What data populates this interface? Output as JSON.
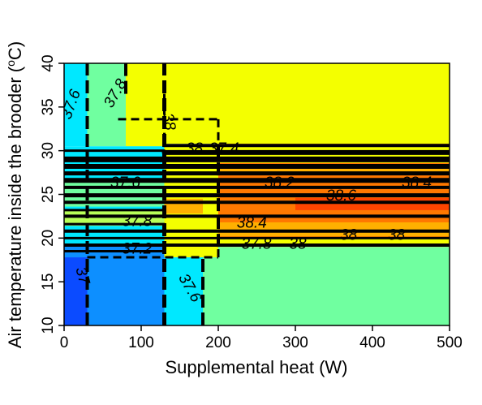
{
  "chart_data": {
    "type": "heatmap",
    "xlabel": "Supplemental heat (W)",
    "ylabel_prefix": "Air temperature inside the brooder (",
    "ylabel_degree": "o",
    "ylabel_suffix": "C)",
    "xlim": [
      0,
      500
    ],
    "ylim": [
      10,
      40
    ],
    "x_ticks": [
      0,
      100,
      200,
      300,
      400,
      500
    ],
    "y_ticks": [
      10,
      15,
      20,
      25,
      30,
      35,
      40
    ],
    "palette": {
      "c37": "#0b4bff",
      "c37_2": "#0d8fff",
      "c37_4": "#00e8ff",
      "c37_6": "#70ffa0",
      "c37_8": "#b8ff58",
      "c38": "#f4ff00",
      "c38_2": "#ffb000",
      "c38_4": "#ff7800",
      "c38_6": "#ff4500"
    },
    "zones": [
      {
        "x": [
          0,
          30
        ],
        "y": [
          10,
          17.8
        ],
        "color": "c37"
      },
      {
        "x": [
          30,
          130
        ],
        "y": [
          10,
          17.8
        ],
        "color": "c37_2"
      },
      {
        "x": [
          130,
          180
        ],
        "y": [
          10,
          17.8
        ],
        "color": "c37_4"
      },
      {
        "x": [
          180,
          500
        ],
        "y": [
          10,
          19
        ],
        "color": "c37_6"
      },
      {
        "x": [
          0,
          30
        ],
        "y": [
          30.5,
          40
        ],
        "color": "c37_4"
      },
      {
        "x": [
          30,
          130
        ],
        "y": [
          30.5,
          40
        ],
        "color": "c37_6"
      },
      {
        "x": [
          80,
          130
        ],
        "y": [
          30.5,
          40
        ],
        "color": "c38"
      },
      {
        "x": [
          130,
          500
        ],
        "y": [
          30.8,
          40
        ],
        "color": "c38"
      },
      {
        "x": [
          0,
          200
        ],
        "y": [
          17.8,
          30.5
        ],
        "color": "c37_4"
      },
      {
        "x": [
          200,
          500
        ],
        "y": [
          19,
          30.8
        ],
        "color": "c38_4"
      }
    ],
    "bands": [
      {
        "x": [
          0,
          130
        ],
        "y": [
          17.8,
          19.2
        ],
        "color": "c37_2"
      },
      {
        "x": [
          0,
          130
        ],
        "y": [
          19.6,
          21.2
        ],
        "color": "c37_4"
      },
      {
        "x": [
          0,
          130
        ],
        "y": [
          21.4,
          23.2
        ],
        "color": "c37_8"
      },
      {
        "x": [
          0,
          130
        ],
        "y": [
          23.6,
          26.6
        ],
        "color": "c37_6"
      },
      {
        "x": [
          0,
          30
        ],
        "y": [
          27,
          28
        ],
        "color": "c37_4"
      },
      {
        "x": [
          130,
          180
        ],
        "y": [
          17.8,
          30.5
        ],
        "color": "c38"
      },
      {
        "x": [
          130,
          180
        ],
        "y": [
          22.8,
          24.5
        ],
        "color": "c38_2"
      },
      {
        "x": [
          180,
          200
        ],
        "y": [
          17.8,
          30.5
        ],
        "color": "c38"
      },
      {
        "x": [
          200,
          500
        ],
        "y": [
          19,
          20
        ],
        "color": "c38"
      },
      {
        "x": [
          200,
          500
        ],
        "y": [
          20.2,
          21.8
        ],
        "color": "c38_2"
      },
      {
        "x": [
          200,
          500
        ],
        "y": [
          22.2,
          24.5
        ],
        "color": "c38_4"
      },
      {
        "x": [
          300,
          500
        ],
        "y": [
          23.2,
          24.6
        ],
        "color": "c38_6"
      },
      {
        "x": [
          200,
          500
        ],
        "y": [
          27.2,
          28
        ],
        "color": "c38_2"
      },
      {
        "x": [
          130,
          500
        ],
        "y": [
          28.6,
          30.5
        ],
        "color": "c38"
      }
    ],
    "hlines": [
      {
        "y": 30.6,
        "x": [
          130,
          500
        ],
        "w": 4
      },
      {
        "y": 29.8,
        "x": [
          130,
          500
        ],
        "w": 6
      },
      {
        "y": 29.0,
        "x": [
          0,
          500
        ],
        "w": 7
      },
      {
        "y": 28.2,
        "x": [
          0,
          500
        ],
        "w": 6
      },
      {
        "y": 27.4,
        "x": [
          0,
          500
        ],
        "w": 5
      },
      {
        "y": 26.6,
        "x": [
          0,
          500
        ],
        "w": 6
      },
      {
        "y": 25.8,
        "x": [
          0,
          500
        ],
        "w": 4
      },
      {
        "y": 24.9,
        "x": [
          0,
          500
        ],
        "w": 5
      },
      {
        "y": 24.1,
        "x": [
          0,
          500
        ],
        "w": 4
      },
      {
        "y": 23.2,
        "x": [
          0,
          130
        ],
        "w": 3
      },
      {
        "y": 22.5,
        "x": [
          0,
          500
        ],
        "w": 4
      },
      {
        "y": 21.6,
        "x": [
          0,
          130
        ],
        "w": 3
      },
      {
        "y": 20.8,
        "x": [
          0,
          500
        ],
        "w": 4
      },
      {
        "y": 20.0,
        "x": [
          0,
          500
        ],
        "w": 3
      },
      {
        "y": 19.2,
        "x": [
          0,
          500
        ],
        "w": 4
      },
      {
        "y": 18.5,
        "x": [
          0,
          130
        ],
        "w": 3
      },
      {
        "y": 30.0,
        "x": [
          0,
          130
        ],
        "w": 3
      }
    ],
    "vlines": [
      {
        "x": 30,
        "y": [
          10,
          40
        ],
        "w": 4
      },
      {
        "x": 80,
        "y": [
          36.5,
          40
        ],
        "w": 4
      },
      {
        "x": 130,
        "y": [
          10,
          40
        ],
        "w": 5
      },
      {
        "x": 180,
        "y": [
          10,
          17.8
        ],
        "w": 4
      },
      {
        "x": 200,
        "y": [
          19,
          30.5
        ],
        "w": 4
      }
    ],
    "dashed": [
      {
        "x1": 30,
        "y1": 17.8,
        "x2": 200,
        "y2": 17.8
      },
      {
        "x1": 200,
        "y1": 17.8,
        "x2": 200,
        "y2": 19
      },
      {
        "x1": 70,
        "y1": 33.6,
        "x2": 200,
        "y2": 33.6
      },
      {
        "x1": 200,
        "y1": 33.6,
        "x2": 200,
        "y2": 30.6
      },
      {
        "x1": 130,
        "y1": 36.5,
        "x2": 130,
        "y2": 31
      }
    ],
    "contour_labels": [
      {
        "text": "37.6",
        "x": 8,
        "y": 33.5,
        "rot": -70
      },
      {
        "text": "37.8",
        "x": 62,
        "y": 34.8,
        "rot": -60
      },
      {
        "text": "38",
        "x": 128,
        "y": 34.2,
        "rot": 80
      },
      {
        "text": "37.6",
        "x": 60,
        "y": 25.8,
        "rot": 0
      },
      {
        "text": "37.8",
        "x": 75,
        "y": 21.4,
        "rot": 0
      },
      {
        "text": "37.2",
        "x": 75,
        "y": 18.2,
        "rot": 0
      },
      {
        "text": "37",
        "x": 15,
        "y": 16.5,
        "rot": 75
      },
      {
        "text": "37.6",
        "x": 148,
        "y": 15.5,
        "rot": 60
      },
      {
        "text": "38.2",
        "x": 260,
        "y": 25.8,
        "rot": 0
      },
      {
        "text": "38.6",
        "x": 340,
        "y": 24.3,
        "rot": 0
      },
      {
        "text": "38.4",
        "x": 438,
        "y": 25.8,
        "rot": 0
      },
      {
        "text": "38.4",
        "x": 224,
        "y": 21.2,
        "rot": 0
      },
      {
        "text": "37.8",
        "x": 230,
        "y": 18.8,
        "rot": 0
      },
      {
        "text": "38",
        "x": 292,
        "y": 18.8,
        "rot": 0
      },
      {
        "text": "38",
        "x": 358,
        "y": 19.8,
        "rot": 0
      },
      {
        "text": "38",
        "x": 420,
        "y": 19.8,
        "rot": 0
      },
      {
        "text": "38",
        "x": 158,
        "y": 29.7,
        "rot": 0
      },
      {
        "text": "37.4",
        "x": 188,
        "y": 29.7,
        "rot": 0
      }
    ]
  }
}
